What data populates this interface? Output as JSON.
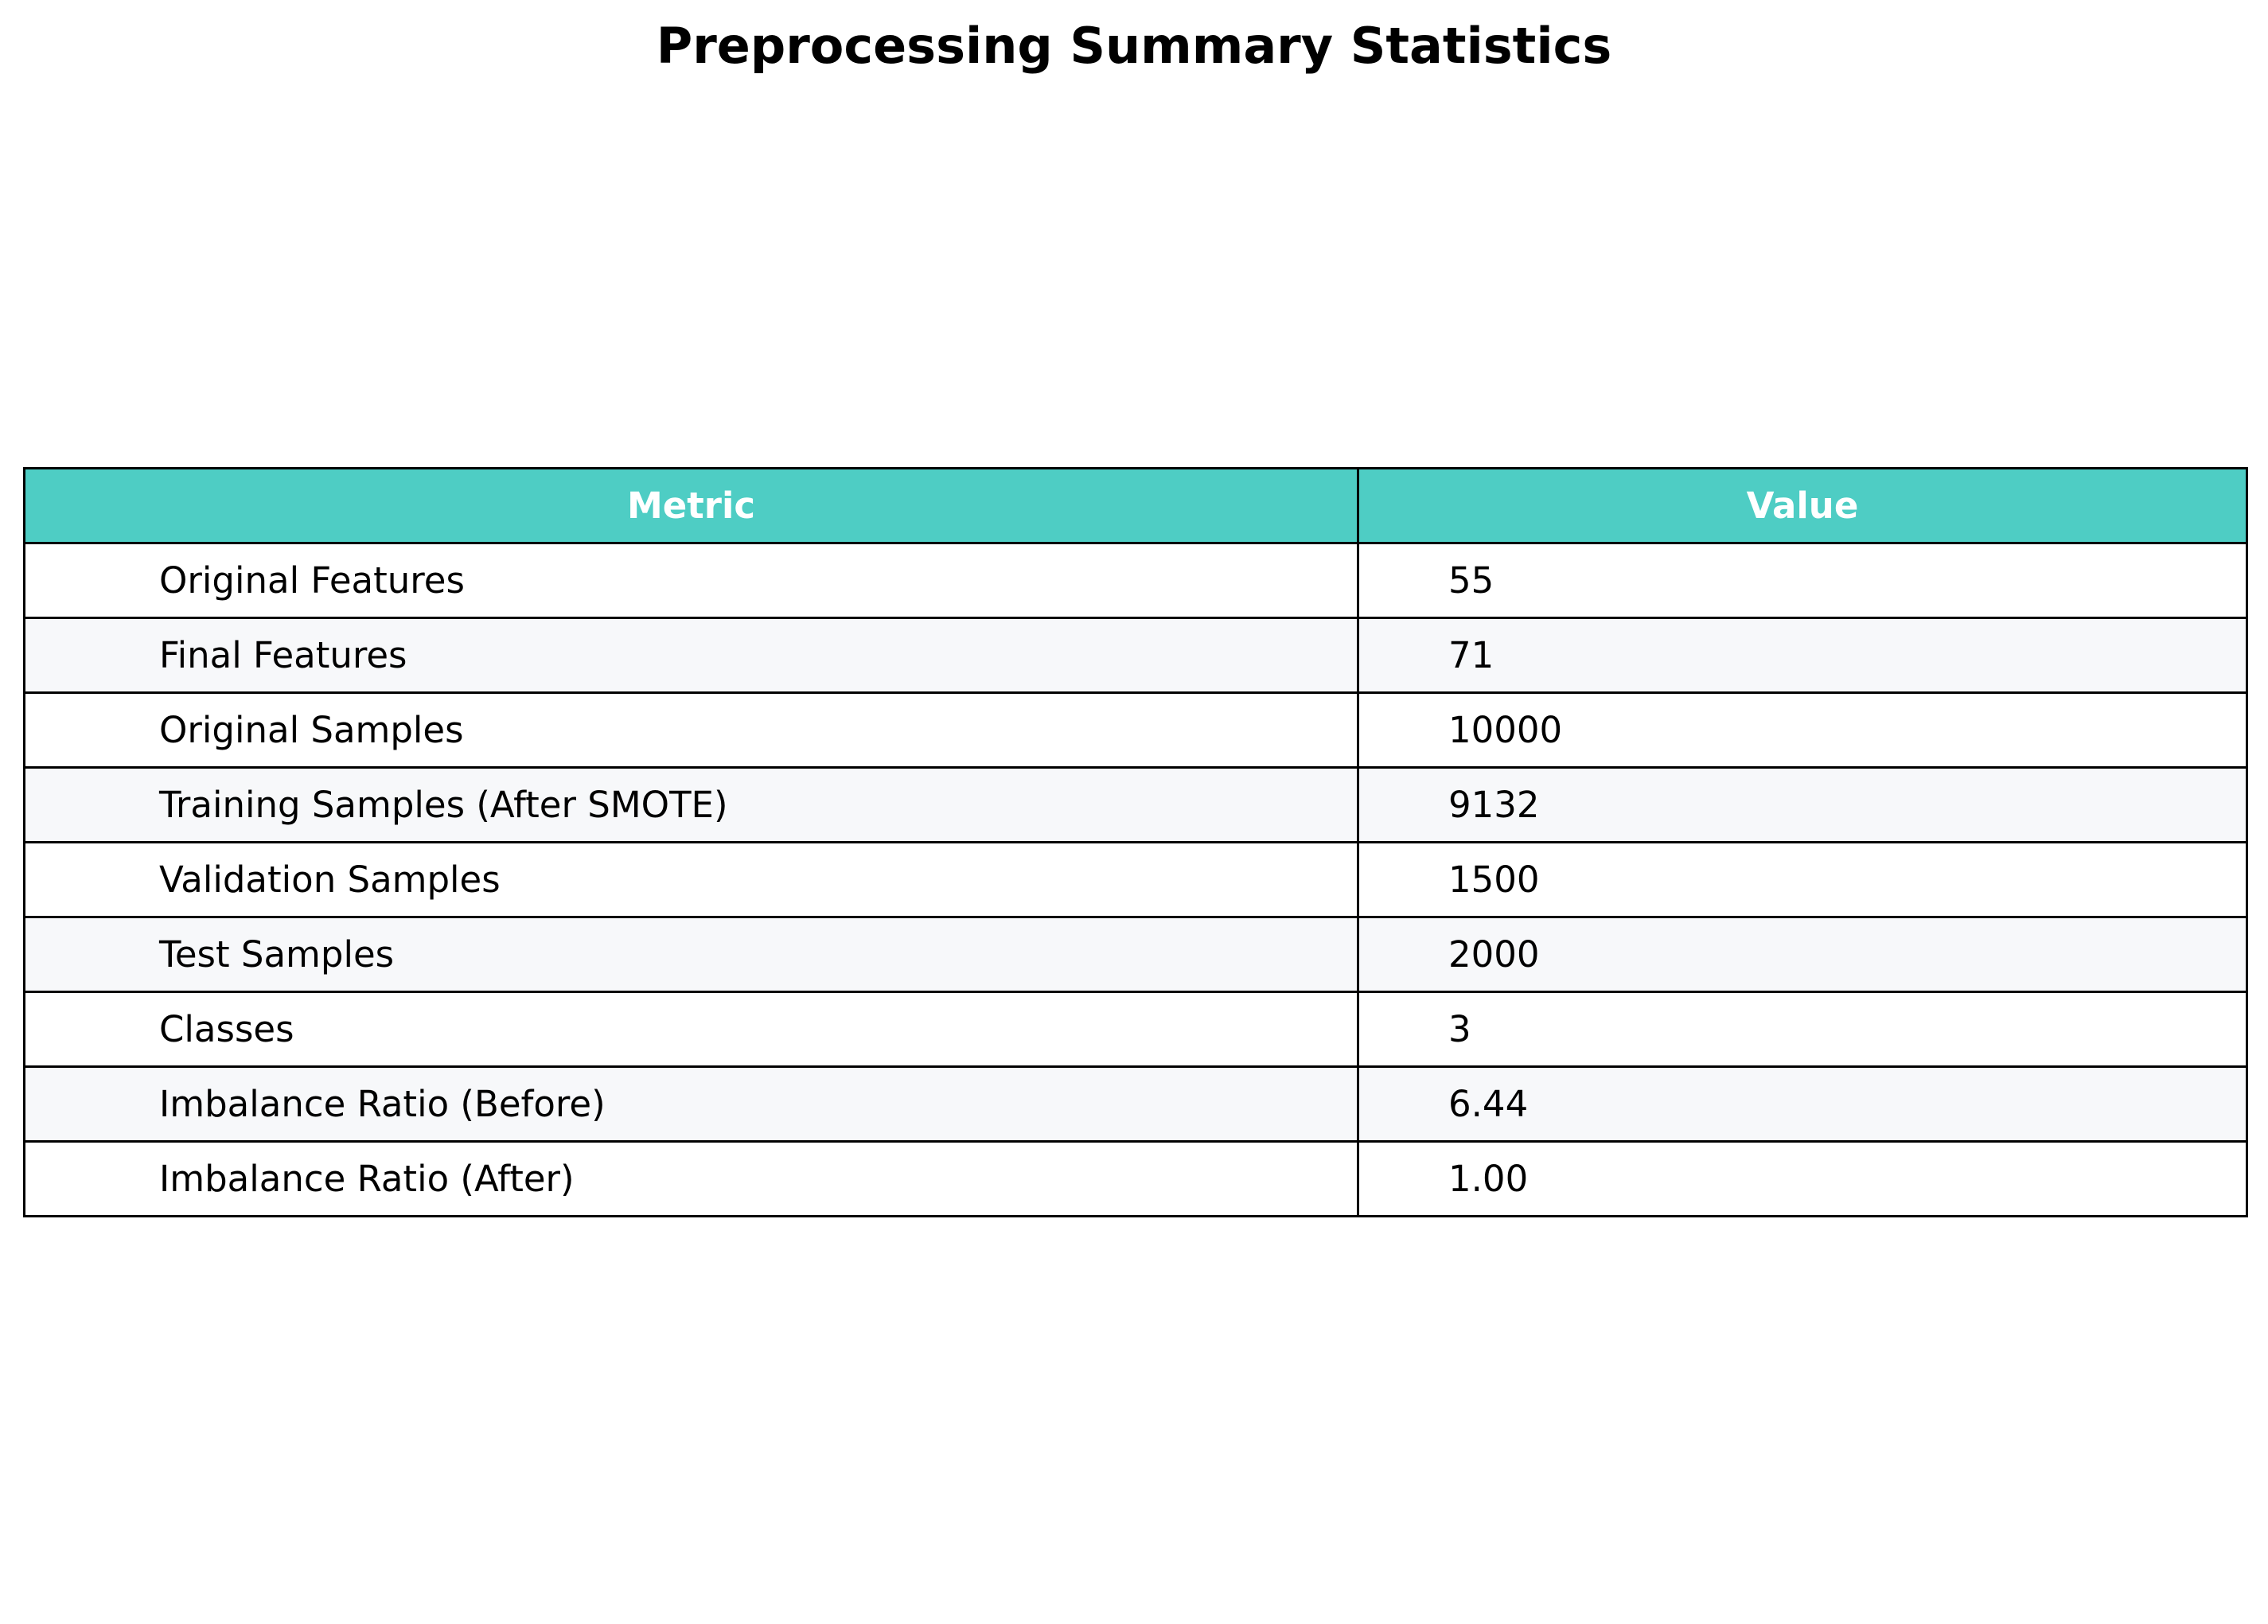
{
  "chart_data": {
    "type": "table",
    "title": "Preprocessing Summary Statistics",
    "columns": [
      "Metric",
      "Value"
    ],
    "rows": [
      {
        "metric": "Original Features",
        "value": "55"
      },
      {
        "metric": "Final Features",
        "value": "71"
      },
      {
        "metric": "Original Samples",
        "value": "10000"
      },
      {
        "metric": "Training Samples (After SMOTE)",
        "value": "9132"
      },
      {
        "metric": "Validation Samples",
        "value": "1500"
      },
      {
        "metric": "Test Samples",
        "value": "2000"
      },
      {
        "metric": "Classes",
        "value": "3"
      },
      {
        "metric": "Imbalance Ratio (Before)",
        "value": "6.44"
      },
      {
        "metric": "Imbalance Ratio (After)",
        "value": "1.00"
      }
    ],
    "colors": {
      "header_background": "#4ecdc4",
      "header_text": "#ffffff",
      "row_alt_background": "#f7f8fa",
      "row_background": "#ffffff",
      "border": "#000000"
    }
  }
}
